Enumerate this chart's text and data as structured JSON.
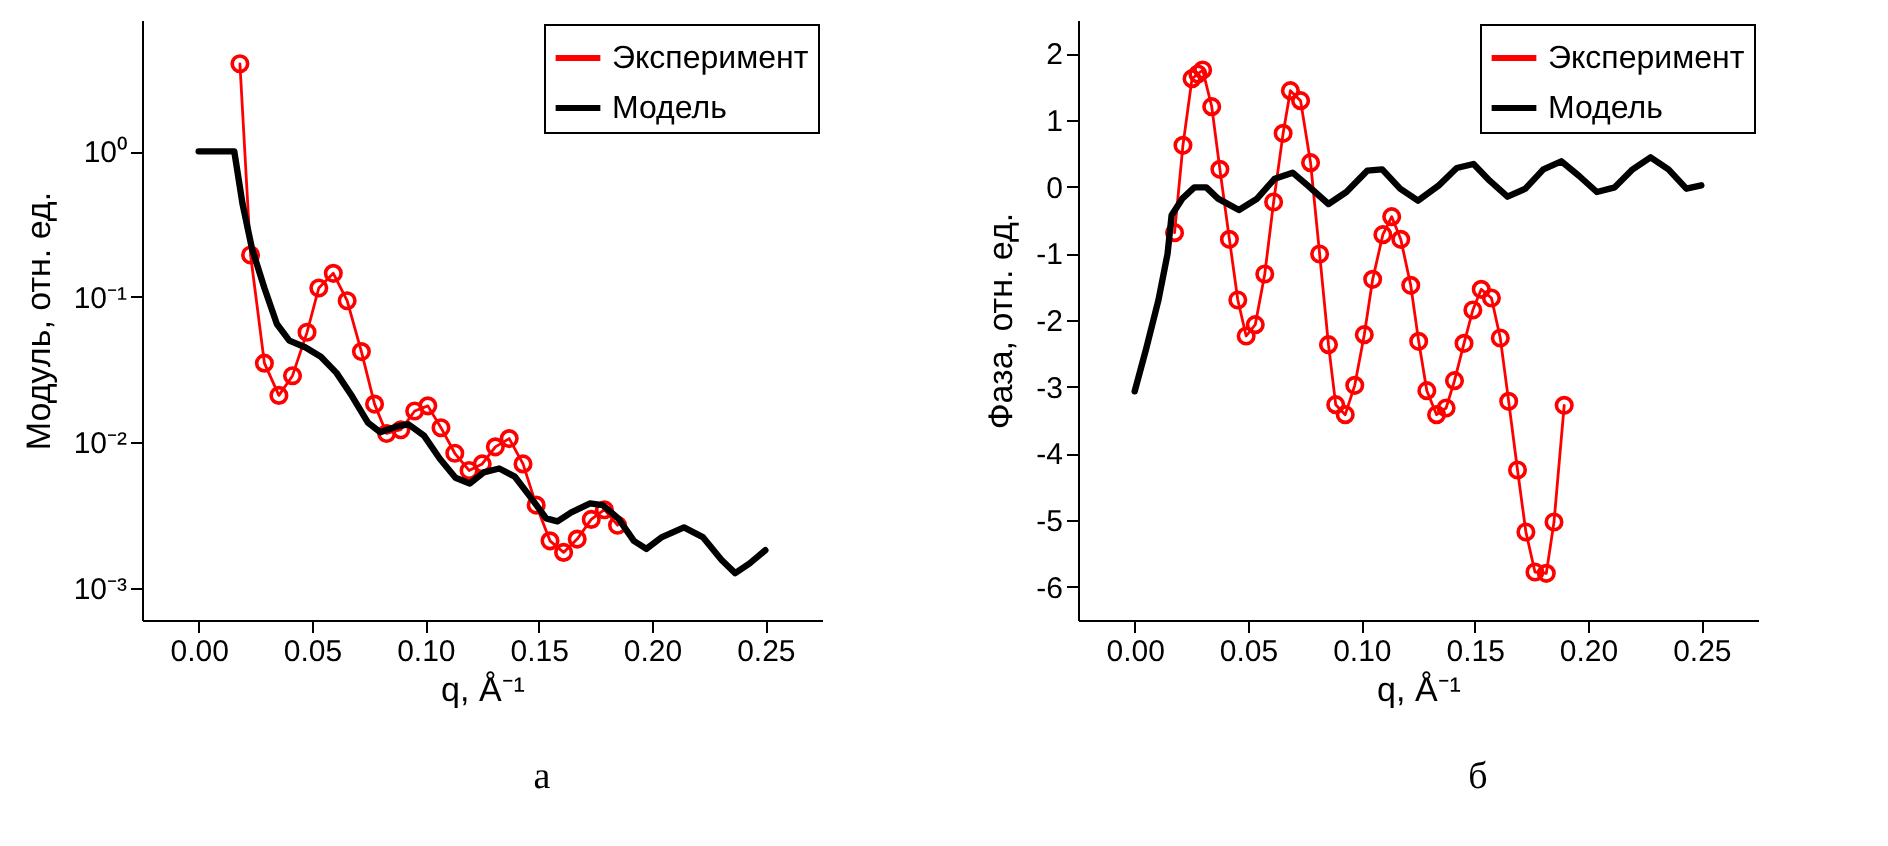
{
  "chart_data": [
    {
      "type": "line",
      "xlabel": "q, Å⁻¹",
      "ylabel": "Модуль, отн. ед.",
      "log": "y",
      "legend": "top right",
      "grid": false,
      "annotations": [
        "а"
      ],
      "xlim": [
        -0.025,
        0.275
      ],
      "xticks": [
        {
          "value": 0,
          "label": "0.00"
        },
        {
          "value": 0.05,
          "label": "0.05"
        },
        {
          "value": 0.1,
          "label": "0.10"
        },
        {
          "value": 0.15,
          "label": "0.15"
        },
        {
          "value": 0.2,
          "label": "0.20"
        },
        {
          "value": 0.25,
          "label": "0.25"
        }
      ],
      "ylim": [
        0.0006,
        8
      ],
      "yticks": [
        {
          "value": 0.001,
          "label": "10⁻³"
        },
        {
          "value": 0.01,
          "label": "10⁻²"
        },
        {
          "value": 0.1,
          "label": "10⁻¹"
        },
        {
          "value": 1,
          "label": "10⁰"
        }
      ],
      "series": [
        {
          "name": "Эксперимент",
          "color": "#ff0000",
          "marker": "circle",
          "x": [
            0.0182,
            0.0229,
            0.029,
            0.0354,
            0.0414,
            0.0478,
            0.053,
            0.0594,
            0.0655,
            0.0718,
            0.0776,
            0.0829,
            0.0892,
            0.0953,
            0.1011,
            0.1069,
            0.113,
            0.1193,
            0.1251,
            0.1309,
            0.137,
            0.1431,
            0.1489,
            0.155,
            0.161,
            0.167,
            0.1732,
            0.179,
            0.1848
          ],
          "values": [
            4.0,
            0.194,
            0.035,
            0.021,
            0.0287,
            0.057,
            0.115,
            0.145,
            0.094,
            0.042,
            0.0183,
            0.0115,
            0.0122,
            0.0164,
            0.0178,
            0.0126,
            0.0084,
            0.0064,
            0.0071,
            0.0093,
            0.0106,
            0.0071,
            0.0037,
            0.0021,
            0.00175,
            0.00216,
            0.00295,
            0.00344,
            0.00269
          ]
        },
        {
          "name": "Модель",
          "color": "#000000",
          "marker": "none",
          "x": [
            0,
            0.0157,
            0.0193,
            0.0235,
            0.029,
            0.0345,
            0.04,
            0.047,
            0.0539,
            0.0608,
            0.0677,
            0.0746,
            0.0801,
            0.087,
            0.0925,
            0.0994,
            0.1064,
            0.1133,
            0.1196,
            0.1257,
            0.1326,
            0.1395,
            0.1464,
            0.1533,
            0.1583,
            0.1644,
            0.1727,
            0.1782,
            0.1851,
            0.192,
            0.1975,
            0.2044,
            0.2141,
            0.2224,
            0.2307,
            0.2367,
            0.2431,
            0.25
          ],
          "values": [
            1,
            1,
            0.44,
            0.215,
            0.115,
            0.065,
            0.05,
            0.045,
            0.0387,
            0.03,
            0.0207,
            0.0137,
            0.0117,
            0.0128,
            0.0133,
            0.0111,
            0.0077,
            0.0057,
            0.0052,
            0.0062,
            0.0066,
            0.0058,
            0.0042,
            0.003,
            0.00286,
            0.0033,
            0.0038,
            0.0037,
            0.003,
            0.0021,
            0.00185,
            0.00223,
            0.0026,
            0.00223,
            0.00155,
            0.00126,
            0.00147,
            0.00181
          ]
        }
      ]
    },
    {
      "type": "line",
      "xlabel": "q, Å⁻¹",
      "ylabel": "Фаза, отн. ед.",
      "legend": "top right",
      "grid": false,
      "annotations": [
        "б"
      ],
      "xlim": [
        -0.025,
        0.275
      ],
      "xticks": [
        {
          "value": 0,
          "label": "0.00"
        },
        {
          "value": 0.05,
          "label": "0.05"
        },
        {
          "value": 0.1,
          "label": "0.10"
        },
        {
          "value": 0.15,
          "label": "0.15"
        },
        {
          "value": 0.2,
          "label": "0.20"
        },
        {
          "value": 0.25,
          "label": "0.25"
        }
      ],
      "ylim": [
        -6.5,
        2.5
      ],
      "yticks": [
        -6,
        -5,
        -4,
        -3,
        -2,
        -1,
        0,
        1,
        2
      ],
      "series": [
        {
          "name": "Эксперимент",
          "color": "#ff0000",
          "marker": "circle",
          "x": [
            0.0176,
            0.0213,
            0.0253,
            0.0279,
            0.03,
            0.034,
            0.0376,
            0.0418,
            0.0455,
            0.0492,
            0.0532,
            0.0574,
            0.0613,
            0.0655,
            0.0687,
            0.0732,
            0.0776,
            0.0816,
            0.0855,
            0.0887,
            0.0929,
            0.0971,
            0.1013,
            0.105,
            0.1095,
            0.1134,
            0.1174,
            0.1218,
            0.1253,
            0.1289,
            0.1332,
            0.1374,
            0.1411,
            0.1453,
            0.1492,
            0.1529,
            0.1574,
            0.1613,
            0.165,
            0.1689,
            0.1726,
            0.1766,
            0.1816,
            0.185,
            0.1895
          ],
          "values": [
            -0.69,
            0.62,
            1.62,
            1.69,
            1.75,
            1.2,
            0.26,
            -0.79,
            -1.7,
            -2.24,
            -2.07,
            -1.31,
            -0.23,
            0.8,
            1.44,
            1.29,
            0.36,
            -1.01,
            -2.37,
            -3.27,
            -3.42,
            -2.98,
            -2.22,
            -1.39,
            -0.72,
            -0.45,
            -0.79,
            -1.48,
            -2.32,
            -3.06,
            -3.42,
            -3.32,
            -2.91,
            -2.35,
            -1.85,
            -1.54,
            -1.67,
            -2.27,
            -3.22,
            -4.25,
            -5.18,
            -5.78,
            -5.8,
            -5.03,
            -3.28
          ]
        },
        {
          "name": "Модель",
          "color": "#000000",
          "marker": "none",
          "x": [
            0,
            0.005,
            0.0105,
            0.0145,
            0.0163,
            0.021,
            0.0263,
            0.0316,
            0.0368,
            0.046,
            0.054,
            0.0618,
            0.0697,
            0.0763,
            0.0855,
            0.0934,
            0.1026,
            0.1092,
            0.1171,
            0.125,
            0.1342,
            0.1421,
            0.1495,
            0.1566,
            0.1645,
            0.1724,
            0.1803,
            0.1882,
            0.1961,
            0.2039,
            0.2118,
            0.2197,
            0.2276,
            0.2355,
            0.2434,
            0.25
          ],
          "values": [
            -3.07,
            -2.44,
            -1.7,
            -1.01,
            -0.43,
            -0.18,
            -0.01,
            -0.01,
            -0.18,
            -0.35,
            -0.18,
            0.12,
            0.21,
            0.02,
            -0.26,
            -0.08,
            0.24,
            0.26,
            -0.03,
            -0.21,
            0.02,
            0.28,
            0.34,
            0.09,
            -0.15,
            -0.03,
            0.26,
            0.38,
            0.16,
            -0.08,
            -0.01,
            0.26,
            0.44,
            0.26,
            -0.03,
            0.02
          ]
        }
      ]
    }
  ]
}
